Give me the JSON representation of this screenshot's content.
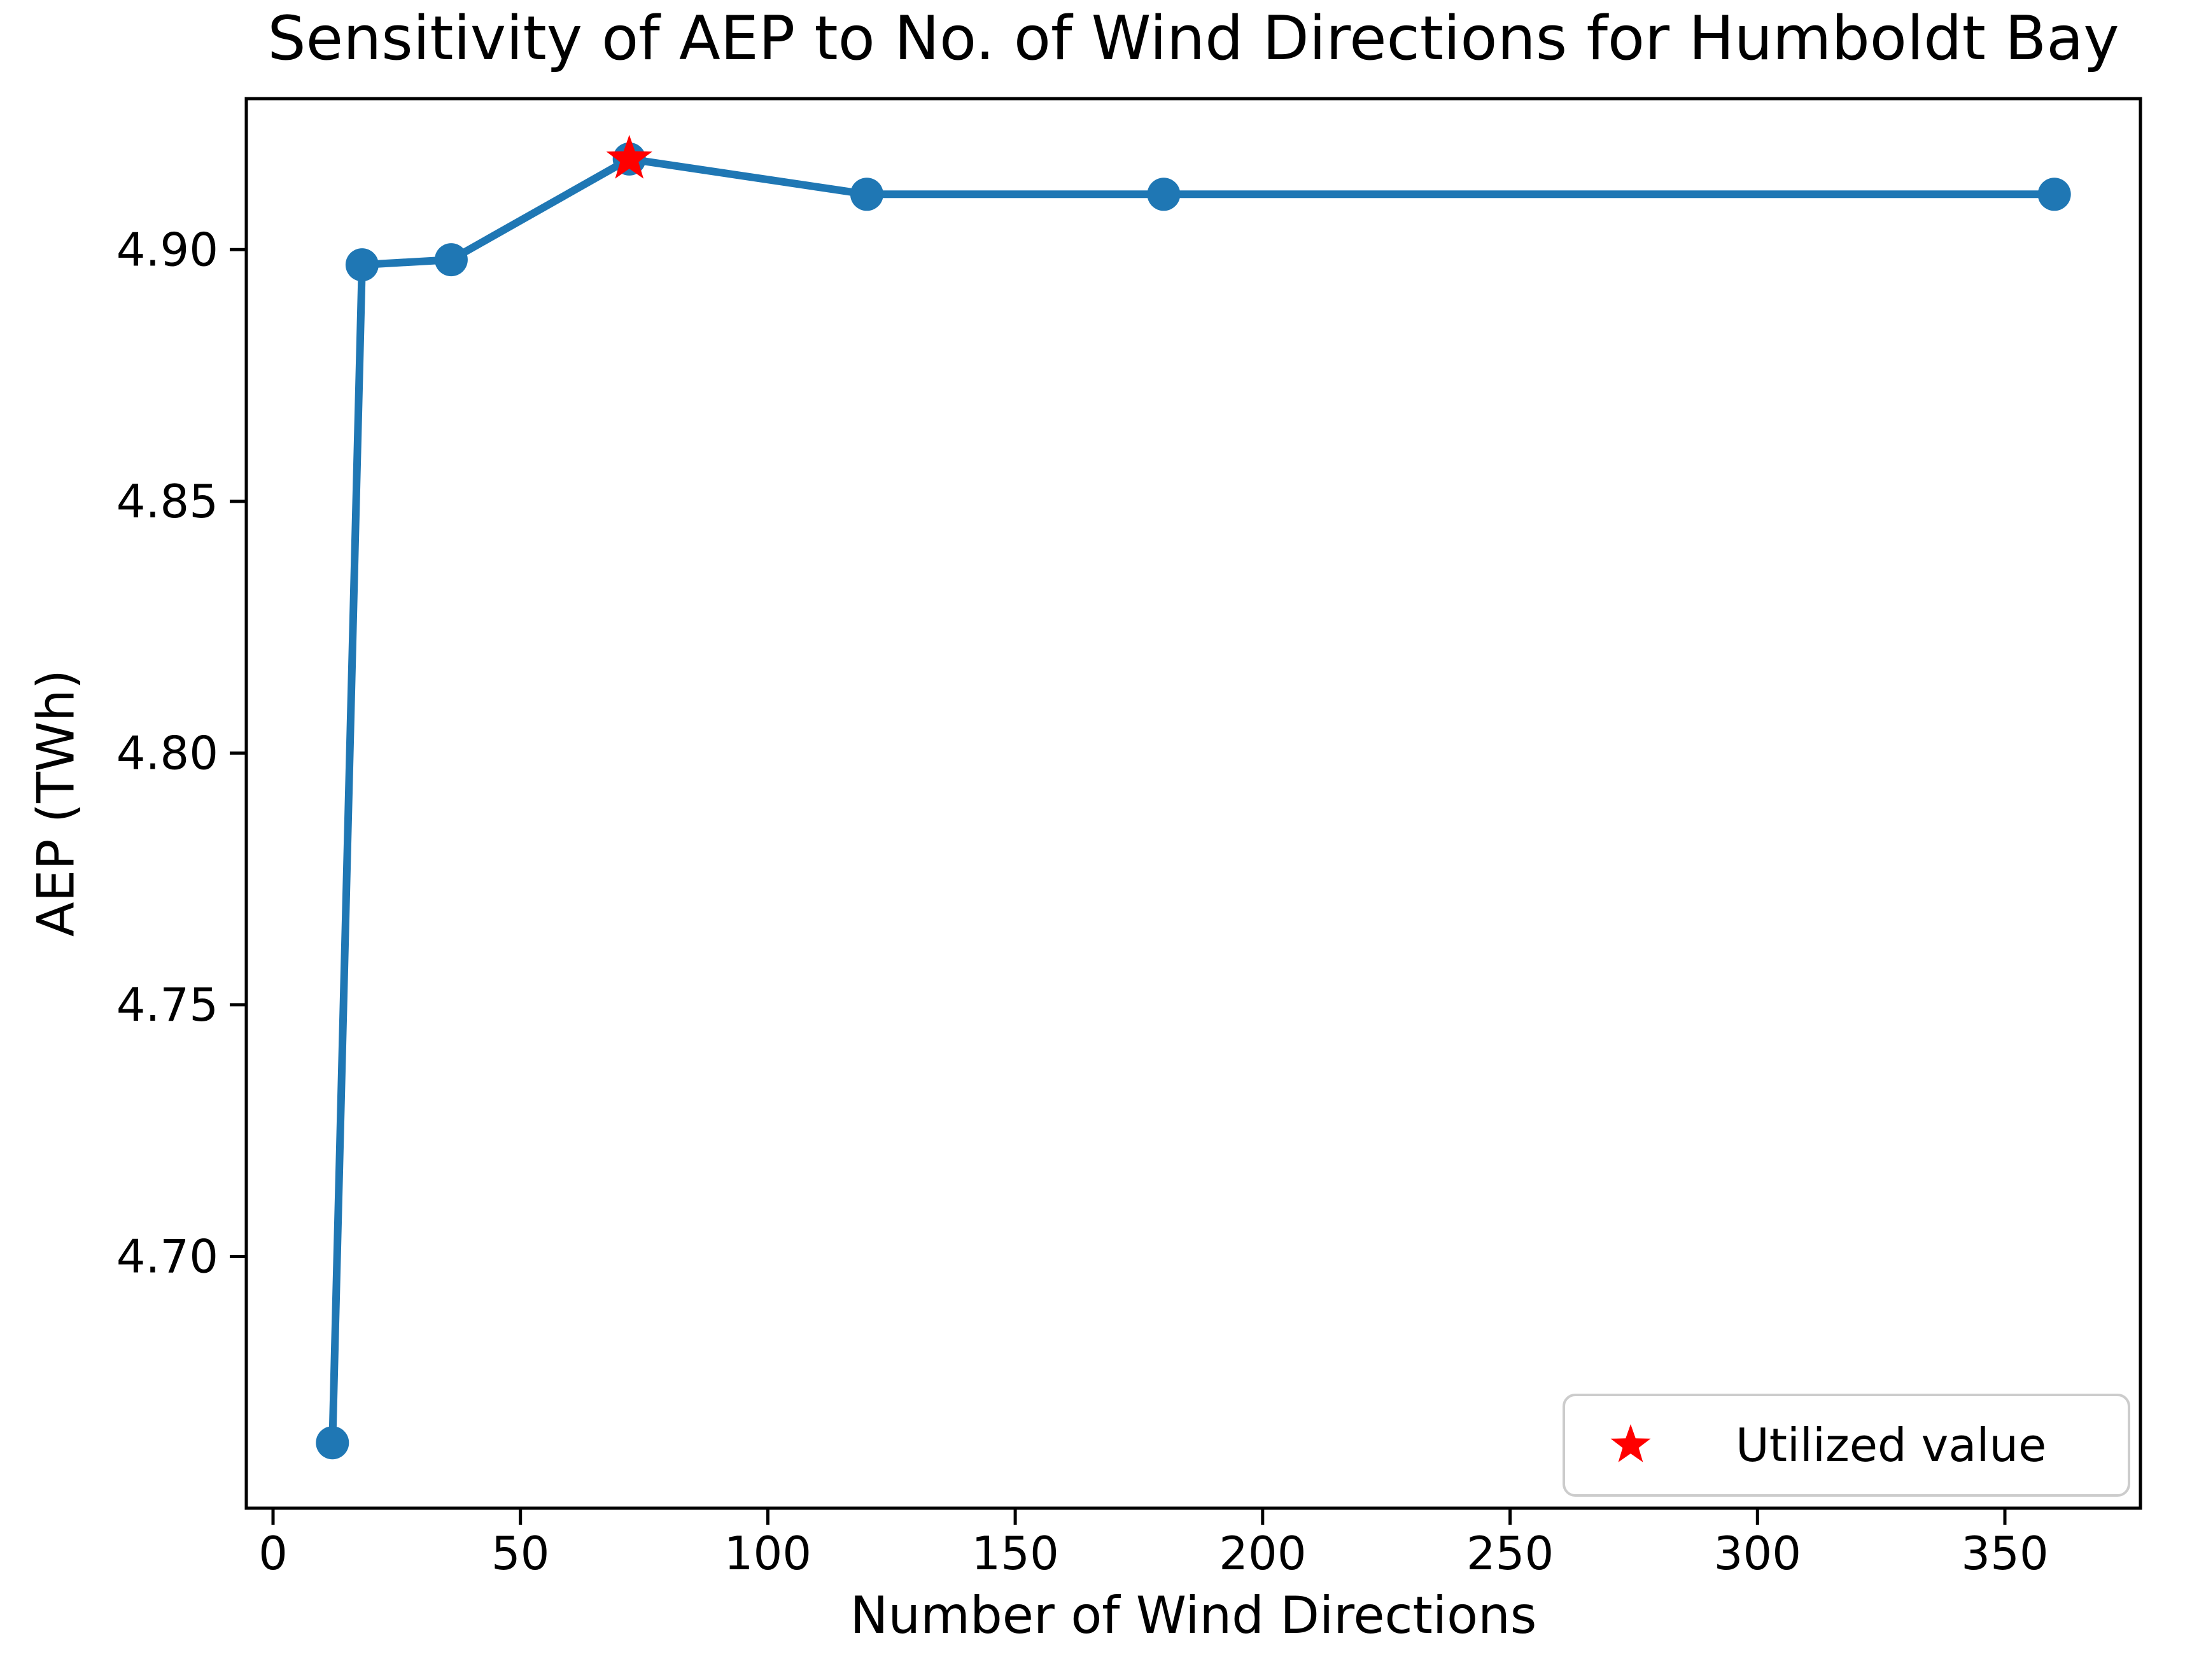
{
  "chart_data": {
    "type": "line",
    "title": "Sensitivity of AEP to No. of Wind Directions for Humboldt Bay",
    "xlabel": "Number of Wind Directions",
    "ylabel": "AEP (TWh)",
    "x": [
      12,
      18,
      36,
      72,
      120,
      180,
      360
    ],
    "y": [
      4.663,
      4.897,
      4.898,
      4.918,
      4.911,
      4.911,
      4.911
    ],
    "utilized_point": {
      "x": 72,
      "y": 4.918
    },
    "x_ticks": [
      0,
      50,
      100,
      150,
      200,
      250,
      300,
      350
    ],
    "y_ticks": [
      4.7,
      4.75,
      4.8,
      4.85,
      4.9
    ],
    "y_tick_decimals": 2,
    "xlim": [
      -5.4,
      377.4
    ],
    "ylim": [
      4.65,
      4.93
    ],
    "grid": false,
    "legend": {
      "position": "lower right",
      "entries": [
        {
          "marker": "star",
          "color": "#ff0000",
          "label": "Utilized value"
        }
      ]
    },
    "colors": {
      "line": "#1f77b4",
      "marker": "#1f77b4",
      "star": "#ff0000",
      "spine": "#000000",
      "legend_border": "#cccccc",
      "legend_fill": "#ffffff"
    }
  }
}
